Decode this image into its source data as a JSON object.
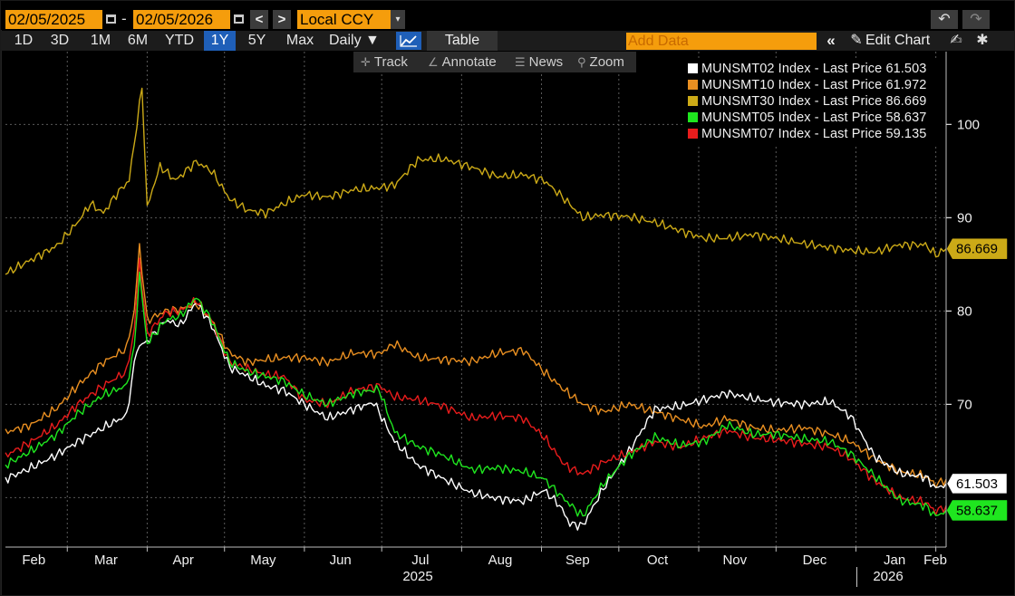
{
  "toolbar": {
    "start_date": "02/05/2025",
    "end_date": "02/05/2026",
    "date_dash": "-",
    "prev_label": "<",
    "next_label": ">",
    "currency": "Local CCY",
    "currency_arrow": "▾",
    "undo_label": "↶",
    "redo_label": "↷"
  },
  "range_buttons": [
    "1D",
    "3D",
    "1M",
    "6M",
    "YTD",
    "1Y",
    "5Y",
    "Max"
  ],
  "active_range": "1Y",
  "toolbar2": {
    "frequency": "Daily ▼",
    "table_label": "Table",
    "add_data_placeholder": "Add Data",
    "collapse_label": "«",
    "edit_chart_label": "Edit Chart",
    "pencil_glyph": "✎",
    "settings_glyph": "✱",
    "edit_icon_glyph": "✍"
  },
  "subtools": {
    "track": "Track",
    "annotate": "Annotate",
    "news": "News",
    "zoom": "Zoom"
  },
  "colors": {
    "MUNSMT02": "#ffffff",
    "MUNSMT10": "#e98f21",
    "MUNSMT30": "#ccaa17",
    "MUNSMT05": "#1fe61f",
    "MUNSMT07": "#e81c1c",
    "accent": "#f59d0c",
    "active_blue": "#1f5fb8"
  },
  "chart_data": {
    "type": "line",
    "x_axis_labels": [
      "Feb",
      "Mar",
      "Apr",
      "May",
      "Jun",
      "Jul",
      "Aug",
      "Sep",
      "Oct",
      "Nov",
      "Dec",
      "Jan",
      "Feb"
    ],
    "year_labels": [
      "2025",
      "2026"
    ],
    "y_ticks": [
      70,
      80,
      90,
      100
    ],
    "y_range": [
      54.7,
      107.8
    ],
    "x_range": [
      "2025-02-05",
      "2026-02-05"
    ],
    "series": [
      {
        "name": "MUNSMT02 Index - Last Price 61.503",
        "ticker": "MUNSMT02",
        "last": "61.503",
        "points": [
          [
            "2025-02-05",
            62
          ],
          [
            "2025-02-15",
            63.2
          ],
          [
            "2025-02-25",
            64.6
          ],
          [
            "2025-03-05",
            66
          ],
          [
            "2025-03-15",
            67.5
          ],
          [
            "2025-03-24",
            68.8
          ],
          [
            "2025-03-28",
            76
          ],
          [
            "2025-04-02",
            77
          ],
          [
            "2025-04-08",
            79
          ],
          [
            "2025-04-14",
            78.5
          ],
          [
            "2025-04-20",
            81
          ],
          [
            "2025-04-26",
            78.5
          ],
          [
            "2025-05-03",
            74
          ],
          [
            "2025-05-10",
            73
          ],
          [
            "2025-05-17",
            72
          ],
          [
            "2025-05-24",
            71.5
          ],
          [
            "2025-06-01",
            70
          ],
          [
            "2025-06-10",
            68.5
          ],
          [
            "2025-06-20",
            69.5
          ],
          [
            "2025-06-28",
            70.2
          ],
          [
            "2025-07-06",
            66
          ],
          [
            "2025-07-15",
            63.5
          ],
          [
            "2025-07-25",
            62
          ],
          [
            "2025-08-05",
            60.5
          ],
          [
            "2025-08-15",
            59.9
          ],
          [
            "2025-08-25",
            59.6
          ],
          [
            "2025-09-02",
            60.8
          ],
          [
            "2025-09-08",
            59.2
          ],
          [
            "2025-09-12",
            57.2
          ],
          [
            "2025-09-17",
            57
          ],
          [
            "2025-09-25",
            61
          ],
          [
            "2025-10-05",
            65
          ],
          [
            "2025-10-15",
            69.5
          ],
          [
            "2025-10-25",
            69.8
          ],
          [
            "2025-11-03",
            70.5
          ],
          [
            "2025-11-12",
            71.2
          ],
          [
            "2025-11-22",
            70.6
          ],
          [
            "2025-12-01",
            70.2
          ],
          [
            "2025-12-12",
            70
          ],
          [
            "2025-12-22",
            70.3
          ],
          [
            "2025-12-30",
            68.7
          ],
          [
            "2026-01-08",
            64.5
          ],
          [
            "2026-01-18",
            62.6
          ],
          [
            "2026-01-28",
            62.2
          ],
          [
            "2026-02-01",
            61
          ],
          [
            "2026-02-05",
            61.503
          ]
        ]
      },
      {
        "name": "MUNSMT10 Index - Last Price 61.972",
        "ticker": "MUNSMT10",
        "last": "61.972",
        "points": [
          [
            "2025-02-05",
            67
          ],
          [
            "2025-02-15",
            67.8
          ],
          [
            "2025-02-25",
            69.6
          ],
          [
            "2025-03-05",
            72
          ],
          [
            "2025-03-15",
            74.5
          ],
          [
            "2025-03-24",
            76
          ],
          [
            "2025-03-27",
            80
          ],
          [
            "2025-03-29",
            87
          ],
          [
            "2025-04-01",
            79
          ],
          [
            "2025-04-08",
            80
          ],
          [
            "2025-04-14",
            80.2
          ],
          [
            "2025-04-20",
            80.8
          ],
          [
            "2025-04-26",
            79
          ],
          [
            "2025-05-03",
            75.5
          ],
          [
            "2025-05-10",
            74.5
          ],
          [
            "2025-05-17",
            74.8
          ],
          [
            "2025-05-24",
            75
          ],
          [
            "2025-06-01",
            75
          ],
          [
            "2025-06-10",
            74.5
          ],
          [
            "2025-06-20",
            75.5
          ],
          [
            "2025-06-30",
            75.4
          ],
          [
            "2025-07-06",
            76.5
          ],
          [
            "2025-07-15",
            75
          ],
          [
            "2025-07-25",
            74.8
          ],
          [
            "2025-08-05",
            74.6
          ],
          [
            "2025-08-15",
            75.5
          ],
          [
            "2025-08-25",
            75.8
          ],
          [
            "2025-09-02",
            73.5
          ],
          [
            "2025-09-10",
            71.5
          ],
          [
            "2025-09-17",
            70
          ],
          [
            "2025-09-25",
            69.2
          ],
          [
            "2025-10-05",
            70
          ],
          [
            "2025-10-15",
            69.2
          ],
          [
            "2025-10-25",
            68.4
          ],
          [
            "2025-11-03",
            67.6
          ],
          [
            "2025-11-12",
            68.5
          ],
          [
            "2025-11-22",
            67.5
          ],
          [
            "2025-12-01",
            67.2
          ],
          [
            "2025-12-12",
            67.5
          ],
          [
            "2025-12-22",
            66.8
          ],
          [
            "2025-12-30",
            66
          ],
          [
            "2026-01-08",
            64.2
          ],
          [
            "2026-01-18",
            62.8
          ],
          [
            "2026-01-28",
            62.3
          ],
          [
            "2026-02-01",
            61.4
          ],
          [
            "2026-02-05",
            61.972
          ]
        ]
      },
      {
        "name": "MUNSMT30 Index - Last Price 86.669",
        "ticker": "MUNSMT30",
        "last": "86.669",
        "points": [
          [
            "2025-02-05",
            84
          ],
          [
            "2025-02-15",
            85.5
          ],
          [
            "2025-02-25",
            87
          ],
          [
            "2025-03-05",
            89.5
          ],
          [
            "2025-03-10",
            91.5
          ],
          [
            "2025-03-15",
            90.5
          ],
          [
            "2025-03-20",
            92.5
          ],
          [
            "2025-03-25",
            94
          ],
          [
            "2025-03-28",
            100
          ],
          [
            "2025-03-30",
            104
          ],
          [
            "2025-04-01",
            91
          ],
          [
            "2025-04-03",
            93
          ],
          [
            "2025-04-06",
            95.5
          ],
          [
            "2025-04-12",
            94
          ],
          [
            "2025-04-20",
            96
          ],
          [
            "2025-04-26",
            95
          ],
          [
            "2025-05-03",
            92
          ],
          [
            "2025-05-10",
            90.8
          ],
          [
            "2025-05-17",
            90.5
          ],
          [
            "2025-05-24",
            91.5
          ],
          [
            "2025-06-01",
            92.5
          ],
          [
            "2025-06-10",
            92.2
          ],
          [
            "2025-06-20",
            93
          ],
          [
            "2025-06-30",
            93.2
          ],
          [
            "2025-07-06",
            93.5
          ],
          [
            "2025-07-15",
            96.2
          ],
          [
            "2025-07-25",
            96.3
          ],
          [
            "2025-08-05",
            95.4
          ],
          [
            "2025-08-15",
            94.4
          ],
          [
            "2025-08-25",
            94.6
          ],
          [
            "2025-09-02",
            94
          ],
          [
            "2025-09-10",
            92
          ],
          [
            "2025-09-17",
            90
          ],
          [
            "2025-09-25",
            90.3
          ],
          [
            "2025-10-05",
            90.1
          ],
          [
            "2025-10-15",
            89.5
          ],
          [
            "2025-10-25",
            88.6
          ],
          [
            "2025-11-03",
            87.8
          ],
          [
            "2025-11-12",
            87.8
          ],
          [
            "2025-11-22",
            88.2
          ],
          [
            "2025-12-01",
            87.8
          ],
          [
            "2025-12-12",
            87.2
          ],
          [
            "2025-12-22",
            86.8
          ],
          [
            "2025-12-30",
            86.5
          ],
          [
            "2026-01-08",
            86.3
          ],
          [
            "2026-01-18",
            87.1
          ],
          [
            "2026-01-28",
            87.1
          ],
          [
            "2026-02-01",
            86
          ],
          [
            "2026-02-05",
            86.669
          ]
        ]
      },
      {
        "name": "MUNSMT05 Index - Last Price 58.637",
        "ticker": "MUNSMT05",
        "last": "58.637",
        "points": [
          [
            "2025-02-05",
            63.5
          ],
          [
            "2025-02-15",
            65
          ],
          [
            "2025-02-25",
            66.8
          ],
          [
            "2025-03-05",
            69
          ],
          [
            "2025-03-15",
            71
          ],
          [
            "2025-03-24",
            72
          ],
          [
            "2025-03-27",
            76
          ],
          [
            "2025-03-29",
            84
          ],
          [
            "2025-04-01",
            76.5
          ],
          [
            "2025-04-08",
            79
          ],
          [
            "2025-04-14",
            79.5
          ],
          [
            "2025-04-20",
            81.5
          ],
          [
            "2025-04-26",
            79
          ],
          [
            "2025-05-03",
            74.5
          ],
          [
            "2025-05-10",
            73.5
          ],
          [
            "2025-05-17",
            73
          ],
          [
            "2025-05-24",
            72.5
          ],
          [
            "2025-06-01",
            71
          ],
          [
            "2025-06-10",
            70
          ],
          [
            "2025-06-20",
            71.2
          ],
          [
            "2025-06-30",
            71.6
          ],
          [
            "2025-07-06",
            67
          ],
          [
            "2025-07-15",
            65.5
          ],
          [
            "2025-07-25",
            64.5
          ],
          [
            "2025-08-05",
            63
          ],
          [
            "2025-08-15",
            63.2
          ],
          [
            "2025-08-25",
            62.8
          ],
          [
            "2025-09-02",
            62
          ],
          [
            "2025-09-10",
            59.8
          ],
          [
            "2025-09-17",
            58
          ],
          [
            "2025-09-25",
            61.5
          ],
          [
            "2025-10-05",
            64.5
          ],
          [
            "2025-10-15",
            66.5
          ],
          [
            "2025-10-25",
            65.6
          ],
          [
            "2025-11-03",
            66
          ],
          [
            "2025-11-12",
            67.8
          ],
          [
            "2025-11-22",
            66.8
          ],
          [
            "2025-12-01",
            66.8
          ],
          [
            "2025-12-12",
            66.3
          ],
          [
            "2025-12-22",
            66
          ],
          [
            "2025-12-30",
            64.7
          ],
          [
            "2026-01-08",
            62.4
          ],
          [
            "2026-01-18",
            59.7
          ],
          [
            "2026-01-28",
            59.1
          ],
          [
            "2026-02-01",
            58
          ],
          [
            "2026-02-05",
            58.637
          ]
        ]
      },
      {
        "name": "MUNSMT07 Index - Last Price 59.135",
        "ticker": "MUNSMT07",
        "last": "59.135",
        "points": [
          [
            "2025-02-05",
            64.5
          ],
          [
            "2025-02-15",
            66
          ],
          [
            "2025-02-25",
            67.8
          ],
          [
            "2025-03-05",
            70
          ],
          [
            "2025-03-15",
            72
          ],
          [
            "2025-03-24",
            73.5
          ],
          [
            "2025-03-27",
            78
          ],
          [
            "2025-03-29",
            85.5
          ],
          [
            "2025-04-01",
            77.5
          ],
          [
            "2025-04-08",
            79.8
          ],
          [
            "2025-04-14",
            80
          ],
          [
            "2025-04-20",
            81.2
          ],
          [
            "2025-04-26",
            79
          ],
          [
            "2025-05-03",
            74.5
          ],
          [
            "2025-05-10",
            73.8
          ],
          [
            "2025-05-17",
            73.2
          ],
          [
            "2025-05-24",
            73
          ],
          [
            "2025-06-01",
            70.5
          ],
          [
            "2025-06-10",
            70
          ],
          [
            "2025-06-20",
            71.5
          ],
          [
            "2025-06-30",
            72
          ],
          [
            "2025-07-06",
            70.8
          ],
          [
            "2025-07-15",
            70.5
          ],
          [
            "2025-07-25",
            69.8
          ],
          [
            "2025-08-05",
            68.5
          ],
          [
            "2025-08-15",
            68.8
          ],
          [
            "2025-08-25",
            68.5
          ],
          [
            "2025-09-02",
            66.5
          ],
          [
            "2025-09-10",
            63.5
          ],
          [
            "2025-09-17",
            62.5
          ],
          [
            "2025-09-25",
            63.8
          ],
          [
            "2025-10-05",
            64.8
          ],
          [
            "2025-10-15",
            66
          ],
          [
            "2025-10-25",
            65.4
          ],
          [
            "2025-11-03",
            66.4
          ],
          [
            "2025-11-12",
            67.2
          ],
          [
            "2025-11-22",
            66.4
          ],
          [
            "2025-12-01",
            66.2
          ],
          [
            "2025-12-12",
            65.8
          ],
          [
            "2025-12-22",
            65.4
          ],
          [
            "2025-12-30",
            64.2
          ],
          [
            "2026-01-08",
            61.9
          ],
          [
            "2026-01-18",
            60
          ],
          [
            "2026-01-28",
            59.5
          ],
          [
            "2026-02-01",
            58.5
          ],
          [
            "2026-02-05",
            59.135
          ]
        ]
      }
    ],
    "value_tags": [
      {
        "ticker": "MUNSMT30",
        "text": "86.669",
        "value": 86.669
      },
      {
        "ticker": "MUNSMT02",
        "text": "61.503",
        "value": 61.503
      },
      {
        "ticker": "MUNSMT05",
        "text": "58.637",
        "value": 58.637
      }
    ],
    "grid": true,
    "legend_position": "top-right"
  }
}
